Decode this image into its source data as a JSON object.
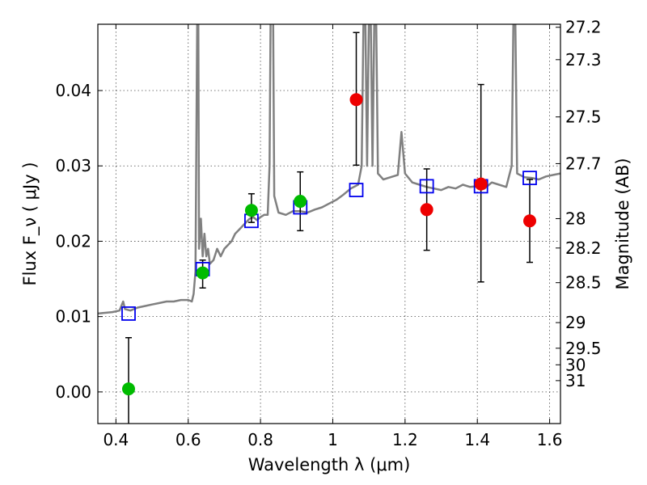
{
  "chart_data": {
    "type": "scatter",
    "xlabel": "Wavelength  λ (μm)",
    "ylabel": "Flux  F_ν  ( μJy )",
    "ylabel_right": "Magnitude (AB)",
    "xlim": [
      0.35,
      1.63
    ],
    "ylim": [
      -0.0042,
      0.0488
    ],
    "grid": true,
    "x_ticks": [
      {
        "v": 0.4,
        "label": "0.4"
      },
      {
        "v": 0.6,
        "label": "0.6"
      },
      {
        "v": 0.8,
        "label": "0.8"
      },
      {
        "v": 1.0,
        "label": "1"
      },
      {
        "v": 1.2,
        "label": "1.2"
      },
      {
        "v": 1.4,
        "label": "1.4"
      },
      {
        "v": 1.6,
        "label": "1.6"
      }
    ],
    "y_ticks": [
      {
        "v": 0.0,
        "label": "0.00"
      },
      {
        "v": 0.01,
        "label": "0.01"
      },
      {
        "v": 0.02,
        "label": "0.02"
      },
      {
        "v": 0.03,
        "label": "0.03"
      },
      {
        "v": 0.04,
        "label": "0.04"
      }
    ],
    "right_ticks": [
      {
        "label": "27.2",
        "flux": 0.0484
      },
      {
        "label": "27.3",
        "flux": 0.0441
      },
      {
        "label": "27.5",
        "flux": 0.0365
      },
      {
        "label": "27.7",
        "flux": 0.0303
      },
      {
        "label": "28",
        "flux": 0.023
      },
      {
        "label": "28.2",
        "flux": 0.0191
      },
      {
        "label": "28.5",
        "flux": 0.0145
      },
      {
        "label": "29",
        "flux": 0.0092
      },
      {
        "label": "29.5",
        "flux": 0.0058
      },
      {
        "label": "30",
        "flux": 0.0036
      },
      {
        "label": "31",
        "flux": 0.0015
      }
    ],
    "series": [
      {
        "kind": "points",
        "color": "#00bb00",
        "points": [
          {
            "x": 0.435,
            "y": 0.0004,
            "err": [
              0.0052,
              0.0068
            ]
          },
          {
            "x": 0.64,
            "y": 0.0158,
            "err": [
              0.002,
              0.0017
            ]
          },
          {
            "x": 0.775,
            "y": 0.0241,
            "err": [
              0.0016,
              0.0022
            ]
          },
          {
            "x": 0.91,
            "y": 0.0253,
            "err": [
              0.0039,
              0.0039
            ]
          }
        ]
      },
      {
        "kind": "points",
        "color": "#ee0000",
        "points": [
          {
            "x": 1.065,
            "y": 0.0388,
            "err": [
              0.0087,
              0.0089
            ]
          },
          {
            "x": 1.26,
            "y": 0.0242,
            "err": [
              0.0054,
              0.0054
            ]
          },
          {
            "x": 1.41,
            "y": 0.0276,
            "err": [
              0.013,
              0.0132
            ]
          },
          {
            "x": 1.545,
            "y": 0.0227,
            "err": [
              0.0055,
              0.0055
            ]
          }
        ]
      },
      {
        "kind": "squares",
        "color": "#0000ee",
        "points": [
          {
            "x": 0.435,
            "y": 0.0104
          },
          {
            "x": 0.64,
            "y": 0.0163
          },
          {
            "x": 0.775,
            "y": 0.0227
          },
          {
            "x": 0.91,
            "y": 0.0245
          },
          {
            "x": 1.065,
            "y": 0.0268
          },
          {
            "x": 1.26,
            "y": 0.0273
          },
          {
            "x": 1.41,
            "y": 0.0273
          },
          {
            "x": 1.545,
            "y": 0.0284
          }
        ]
      },
      {
        "kind": "line",
        "color": "#808080",
        "points": [
          [
            0.35,
            0.0104
          ],
          [
            0.37,
            0.0105
          ],
          [
            0.39,
            0.0106
          ],
          [
            0.41,
            0.0108
          ],
          [
            0.42,
            0.012
          ],
          [
            0.425,
            0.011
          ],
          [
            0.44,
            0.0108
          ],
          [
            0.46,
            0.0112
          ],
          [
            0.48,
            0.0114
          ],
          [
            0.5,
            0.0116
          ],
          [
            0.52,
            0.0118
          ],
          [
            0.54,
            0.012
          ],
          [
            0.56,
            0.012
          ],
          [
            0.58,
            0.0122
          ],
          [
            0.6,
            0.0122
          ],
          [
            0.61,
            0.012
          ],
          [
            0.615,
            0.013
          ],
          [
            0.62,
            0.016
          ],
          [
            0.625,
            0.05
          ],
          [
            0.628,
            0.05
          ],
          [
            0.63,
            0.019
          ],
          [
            0.635,
            0.023
          ],
          [
            0.64,
            0.018
          ],
          [
            0.645,
            0.021
          ],
          [
            0.65,
            0.018
          ],
          [
            0.655,
            0.019
          ],
          [
            0.66,
            0.017
          ],
          [
            0.67,
            0.0175
          ],
          [
            0.68,
            0.019
          ],
          [
            0.69,
            0.018
          ],
          [
            0.7,
            0.019
          ],
          [
            0.71,
            0.0195
          ],
          [
            0.72,
            0.02
          ],
          [
            0.73,
            0.021
          ],
          [
            0.74,
            0.0215
          ],
          [
            0.75,
            0.022
          ],
          [
            0.76,
            0.0225
          ],
          [
            0.77,
            0.023
          ],
          [
            0.78,
            0.0232
          ],
          [
            0.79,
            0.0228
          ],
          [
            0.8,
            0.0232
          ],
          [
            0.81,
            0.0235
          ],
          [
            0.82,
            0.0235
          ],
          [
            0.825,
            0.03
          ],
          [
            0.828,
            0.05
          ],
          [
            0.835,
            0.05
          ],
          [
            0.838,
            0.026
          ],
          [
            0.85,
            0.0238
          ],
          [
            0.87,
            0.0235
          ],
          [
            0.89,
            0.024
          ],
          [
            0.91,
            0.024
          ],
          [
            0.93,
            0.0238
          ],
          [
            0.95,
            0.0242
          ],
          [
            0.97,
            0.0245
          ],
          [
            0.99,
            0.025
          ],
          [
            1.01,
            0.0255
          ],
          [
            1.03,
            0.0262
          ],
          [
            1.05,
            0.027
          ],
          [
            1.07,
            0.0275
          ],
          [
            1.08,
            0.03
          ],
          [
            1.085,
            0.05
          ],
          [
            1.09,
            0.05
          ],
          [
            1.095,
            0.03
          ],
          [
            1.1,
            0.05
          ],
          [
            1.105,
            0.05
          ],
          [
            1.11,
            0.03
          ],
          [
            1.115,
            0.05
          ],
          [
            1.12,
            0.05
          ],
          [
            1.125,
            0.029
          ],
          [
            1.14,
            0.0282
          ],
          [
            1.16,
            0.0285
          ],
          [
            1.18,
            0.0288
          ],
          [
            1.19,
            0.0345
          ],
          [
            1.2,
            0.029
          ],
          [
            1.22,
            0.0278
          ],
          [
            1.24,
            0.0275
          ],
          [
            1.26,
            0.0272
          ],
          [
            1.28,
            0.027
          ],
          [
            1.3,
            0.0268
          ],
          [
            1.32,
            0.0272
          ],
          [
            1.34,
            0.027
          ],
          [
            1.36,
            0.0275
          ],
          [
            1.38,
            0.0272
          ],
          [
            1.4,
            0.0273
          ],
          [
            1.42,
            0.027
          ],
          [
            1.44,
            0.0278
          ],
          [
            1.46,
            0.0275
          ],
          [
            1.48,
            0.0272
          ],
          [
            1.495,
            0.03
          ],
          [
            1.5,
            0.05
          ],
          [
            1.505,
            0.05
          ],
          [
            1.51,
            0.029
          ],
          [
            1.53,
            0.0285
          ],
          [
            1.55,
            0.0284
          ],
          [
            1.57,
            0.0282
          ],
          [
            1.59,
            0.0286
          ],
          [
            1.61,
            0.0288
          ],
          [
            1.63,
            0.029
          ]
        ]
      }
    ]
  }
}
